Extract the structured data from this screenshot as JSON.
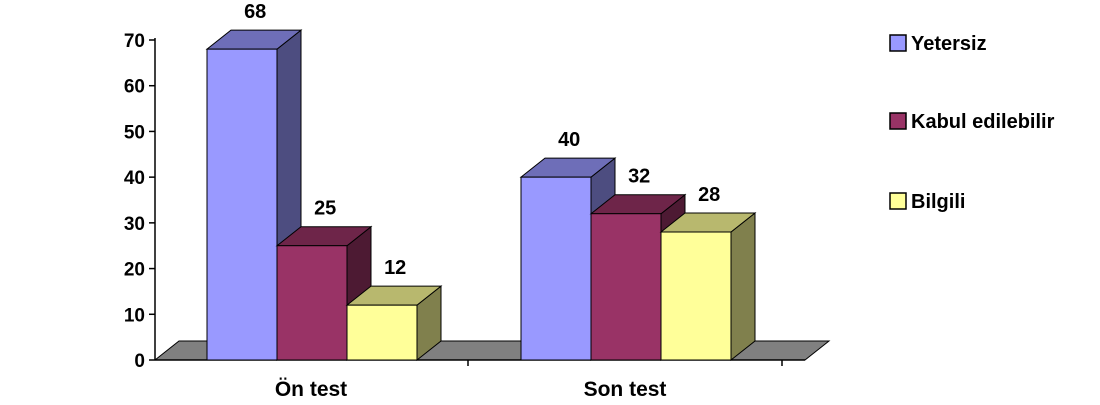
{
  "chart_data": {
    "type": "bar",
    "categories": [
      "Ön test",
      "Son test"
    ],
    "series": [
      {
        "name": "Yetersiz",
        "values": [
          68,
          40
        ],
        "color": "#9999FF"
      },
      {
        "name": "Kabul edilebilir",
        "values": [
          25,
          32
        ],
        "color": "#993366"
      },
      {
        "name": "Bilgili",
        "values": [
          12,
          28
        ],
        "color": "#FFFF99"
      }
    ],
    "ylim": [
      0,
      70
    ],
    "yticks": [
      0,
      10,
      20,
      30,
      40,
      50,
      60,
      70
    ],
    "grid": false,
    "legend": "right",
    "style": "3d-clustered-column",
    "floor_color": "#808080"
  }
}
